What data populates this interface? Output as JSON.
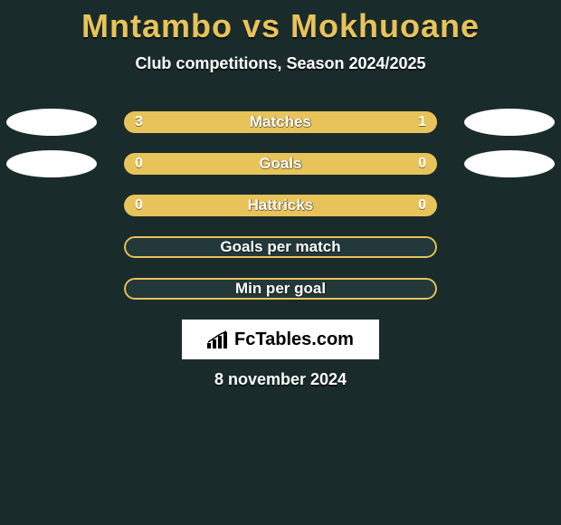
{
  "header": {
    "title": "Mntambo vs Mokhuoane",
    "subtitle": "Club competitions, Season 2024/2025"
  },
  "colors": {
    "background": "#1a2b2b",
    "accent": "#e8c35a",
    "white": "#ffffff",
    "ellipse": "#ffffff"
  },
  "stats": [
    {
      "label": "Matches",
      "left_value": "3",
      "right_value": "1",
      "left_pct": 73,
      "right_pct": 27,
      "show_left_ellipse": true,
      "show_right_ellipse": true,
      "show_values": true,
      "fill_mode": "split"
    },
    {
      "label": "Goals",
      "left_value": "0",
      "right_value": "0",
      "left_pct": 100,
      "right_pct": 0,
      "show_left_ellipse": true,
      "show_right_ellipse": true,
      "show_values": true,
      "fill_mode": "full"
    },
    {
      "label": "Hattricks",
      "left_value": "0",
      "right_value": "0",
      "left_pct": 100,
      "right_pct": 0,
      "show_left_ellipse": false,
      "show_right_ellipse": false,
      "show_values": true,
      "fill_mode": "full"
    },
    {
      "label": "Goals per match",
      "left_value": "",
      "right_value": "",
      "left_pct": 0,
      "right_pct": 0,
      "show_left_ellipse": false,
      "show_right_ellipse": false,
      "show_values": false,
      "fill_mode": "outline"
    },
    {
      "label": "Min per goal",
      "left_value": "",
      "right_value": "",
      "left_pct": 0,
      "right_pct": 0,
      "show_left_ellipse": false,
      "show_right_ellipse": false,
      "show_values": false,
      "fill_mode": "outline"
    }
  ],
  "branding": {
    "text": "FcTables.com"
  },
  "footer": {
    "date": "8 november 2024"
  }
}
